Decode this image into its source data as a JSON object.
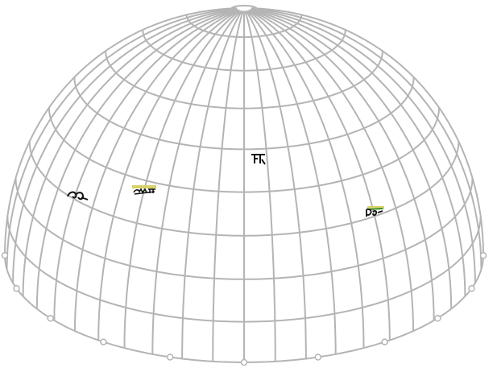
{
  "colors": {
    "background": "#ffffff",
    "mesh": "#b4b4b4",
    "glyph": "#111111",
    "highlight": "#d8d26a",
    "accent_green": "#3c8a2e"
  },
  "mesh": {
    "meridian_count": 24,
    "parallel_count": 9,
    "base_node_count": 11
  },
  "glyphs": [
    {
      "name": "glyph-left",
      "highlight": false
    },
    {
      "name": "glyph-left-center",
      "highlight": true
    },
    {
      "name": "glyph-center",
      "highlight": false
    },
    {
      "name": "glyph-right",
      "highlight": true
    }
  ]
}
